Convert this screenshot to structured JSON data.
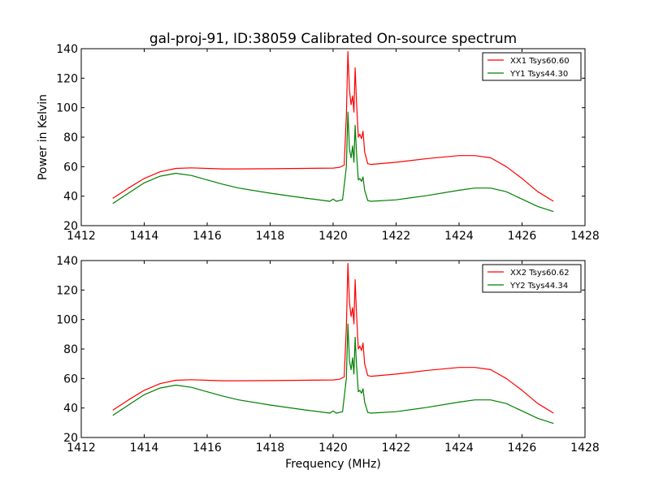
{
  "figure": {
    "title": "gal-proj-91, ID:38059 Calibrated On-source spectrum",
    "xlabel": "Frequency (MHz)",
    "ylabel": "Power in Kelvin"
  },
  "colors": {
    "xx": "#ff0000",
    "yy": "#008000",
    "axes": "#000000",
    "background": "#ffffff"
  },
  "chart_data": [
    {
      "type": "line",
      "xlim": [
        1412,
        1428
      ],
      "ylim": [
        20,
        140
      ],
      "xticks": [
        1412,
        1414,
        1416,
        1418,
        1420,
        1422,
        1424,
        1426,
        1428
      ],
      "yticks": [
        20,
        40,
        60,
        80,
        100,
        120,
        140
      ],
      "grid": false,
      "legend": "top-right",
      "series": [
        {
          "name": "XX1 Tsys60.60",
          "color": "#ff0000",
          "x": [
            1413.0,
            1413.5,
            1414.0,
            1414.5,
            1415.0,
            1415.5,
            1416.0,
            1416.5,
            1417.0,
            1418.0,
            1419.0,
            1420.0,
            1420.2,
            1420.35,
            1420.42,
            1420.47,
            1420.52,
            1420.57,
            1420.62,
            1420.66,
            1420.7,
            1420.74,
            1420.8,
            1420.85,
            1420.9,
            1420.95,
            1421.0,
            1421.1,
            1421.2,
            1422.0,
            1423.0,
            1424.0,
            1424.5,
            1425.0,
            1425.5,
            1426.0,
            1426.5,
            1427.0
          ],
          "y": [
            38.5,
            45.5,
            52,
            56.5,
            58.8,
            59.2,
            58.8,
            58.5,
            58.5,
            58.6,
            58.8,
            59,
            59.5,
            61,
            95,
            138,
            112,
            102,
            108,
            97,
            127,
            105,
            80,
            82,
            79,
            84,
            70,
            62,
            61.5,
            63,
            65.5,
            67.5,
            67.5,
            66,
            60,
            52,
            43,
            36.5
          ]
        },
        {
          "name": "YY1 Tsys44.30",
          "color": "#008000",
          "x": [
            1413.0,
            1413.5,
            1414.0,
            1414.5,
            1415.0,
            1415.5,
            1416.0,
            1416.5,
            1417.0,
            1418.0,
            1419.0,
            1419.9,
            1420.0,
            1420.1,
            1420.3,
            1420.42,
            1420.47,
            1420.52,
            1420.57,
            1420.62,
            1420.66,
            1420.7,
            1420.74,
            1420.8,
            1420.85,
            1420.9,
            1420.95,
            1421.0,
            1421.1,
            1421.2,
            1422.0,
            1423.0,
            1424.0,
            1424.5,
            1425.0,
            1425.5,
            1426.0,
            1426.5,
            1427.0
          ],
          "y": [
            35,
            42,
            49,
            53.5,
            55.5,
            54,
            51,
            48,
            45.5,
            42,
            39,
            36.5,
            38,
            36.5,
            37.5,
            60,
            97,
            72,
            66,
            74,
            63,
            88,
            70,
            51,
            52,
            50,
            53,
            44,
            37,
            36.5,
            37.5,
            40.5,
            44,
            45.5,
            45.5,
            43,
            38,
            33,
            29.5
          ]
        }
      ]
    },
    {
      "type": "line",
      "xlim": [
        1412,
        1428
      ],
      "ylim": [
        20,
        140
      ],
      "xticks": [
        1412,
        1414,
        1416,
        1418,
        1420,
        1422,
        1424,
        1426,
        1428
      ],
      "yticks": [
        20,
        40,
        60,
        80,
        100,
        120,
        140
      ],
      "grid": false,
      "legend": "top-right",
      "series": [
        {
          "name": "XX2 Tsys60.62",
          "color": "#ff0000",
          "x": [
            1413.0,
            1413.5,
            1414.0,
            1414.5,
            1415.0,
            1415.5,
            1416.0,
            1416.5,
            1417.0,
            1418.0,
            1419.0,
            1420.0,
            1420.2,
            1420.35,
            1420.42,
            1420.47,
            1420.52,
            1420.57,
            1420.62,
            1420.66,
            1420.7,
            1420.74,
            1420.8,
            1420.85,
            1420.9,
            1420.95,
            1421.0,
            1421.1,
            1421.2,
            1422.0,
            1423.0,
            1424.0,
            1424.5,
            1425.0,
            1425.5,
            1426.0,
            1426.5,
            1427.0
          ],
          "y": [
            38.5,
            45.5,
            52,
            56.5,
            58.8,
            59.2,
            58.8,
            58.5,
            58.5,
            58.6,
            58.8,
            59,
            59.5,
            61,
            95,
            138,
            112,
            102,
            108,
            97,
            127,
            105,
            80,
            82,
            79,
            84,
            70,
            62,
            61.5,
            63,
            65.5,
            67.5,
            67.5,
            66,
            60,
            52,
            43,
            36.5
          ]
        },
        {
          "name": "YY2 Tsys44.34",
          "color": "#008000",
          "x": [
            1413.0,
            1413.5,
            1414.0,
            1414.5,
            1415.0,
            1415.5,
            1416.0,
            1416.5,
            1417.0,
            1418.0,
            1419.0,
            1419.9,
            1420.0,
            1420.1,
            1420.3,
            1420.42,
            1420.47,
            1420.52,
            1420.57,
            1420.62,
            1420.66,
            1420.7,
            1420.74,
            1420.8,
            1420.85,
            1420.9,
            1420.95,
            1421.0,
            1421.1,
            1421.2,
            1422.0,
            1423.0,
            1424.0,
            1424.5,
            1425.0,
            1425.5,
            1426.0,
            1426.5,
            1427.0
          ],
          "y": [
            35,
            42,
            49,
            53.5,
            55.5,
            54,
            51,
            48,
            45.5,
            42,
            39,
            36.5,
            38,
            36.5,
            37.5,
            60,
            97,
            72,
            66,
            74,
            63,
            88,
            70,
            51,
            52,
            50,
            53,
            44,
            37,
            36.5,
            37.5,
            40.5,
            44,
            45.5,
            45.5,
            43,
            38,
            33,
            29.5
          ]
        }
      ]
    }
  ]
}
